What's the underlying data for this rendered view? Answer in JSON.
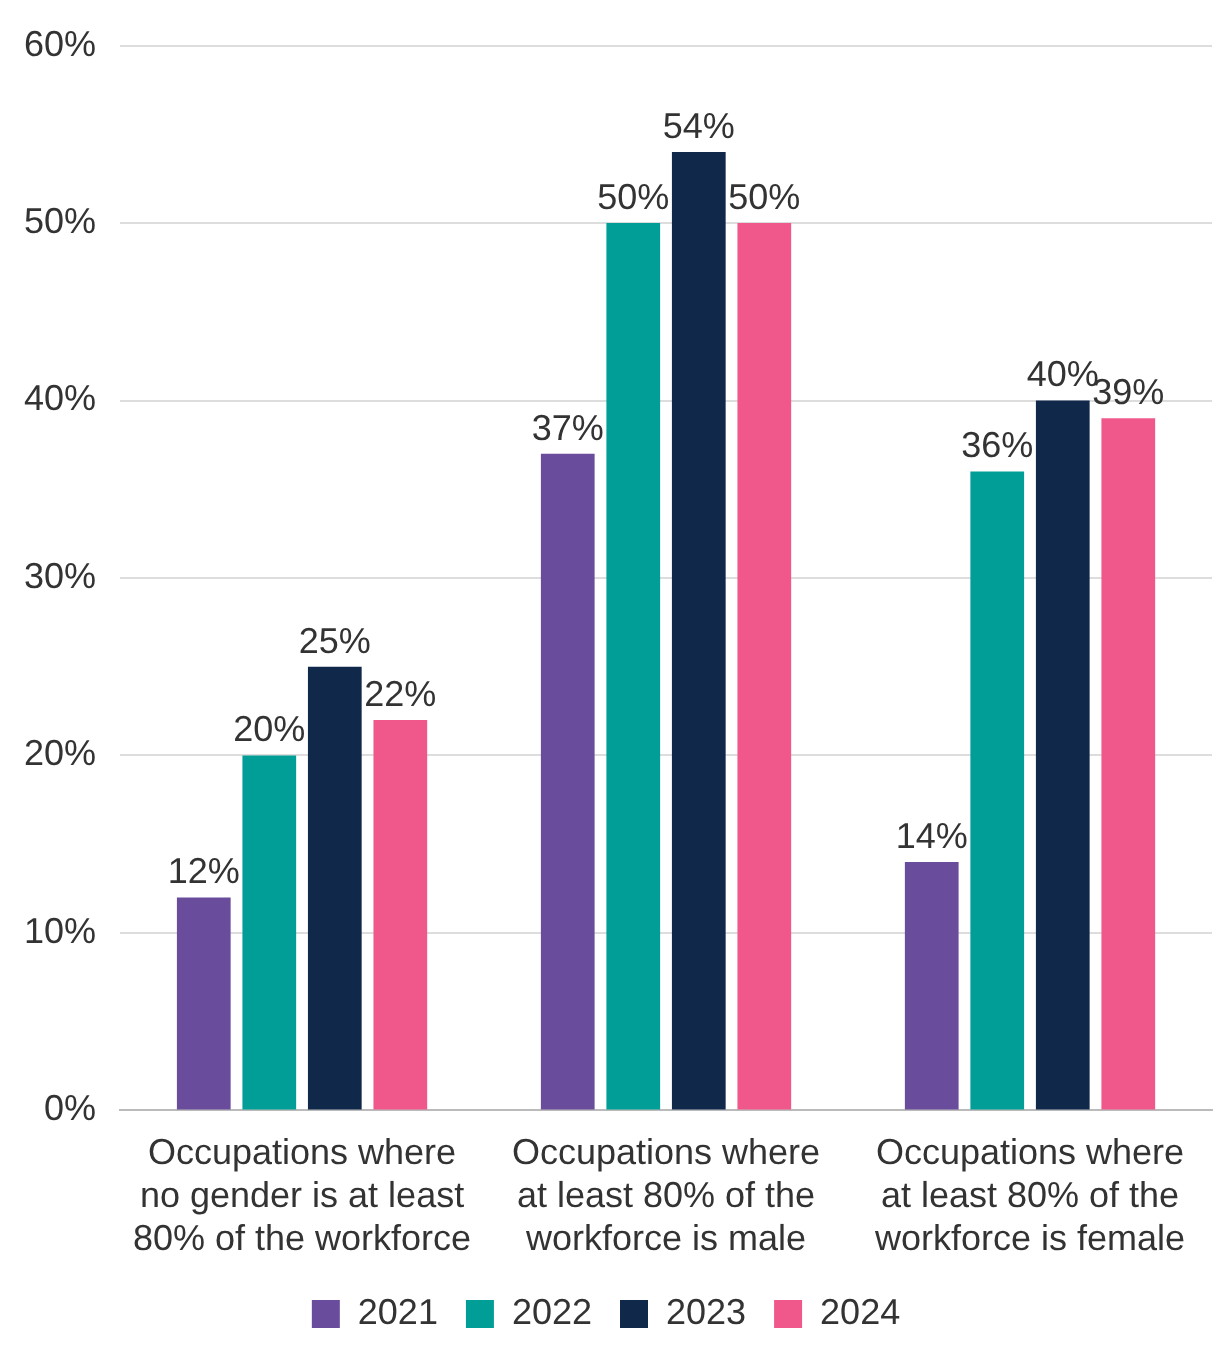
{
  "chart_data": {
    "type": "bar",
    "categories": [
      "Occupations where no gender is at least 80% of the workforce",
      "Occupations where at least 80% of the workforce is male",
      "Occupations where at least 80% of the workforce is female"
    ],
    "series": [
      {
        "name": "2021",
        "color": "#6a4c9c",
        "values": [
          12,
          37,
          14
        ],
        "value_labels": [
          "12%",
          "37%",
          "14%"
        ]
      },
      {
        "name": "2022",
        "color": "#009e96",
        "values": [
          20,
          50,
          36
        ],
        "value_labels": [
          "20%",
          "50%",
          "36%"
        ]
      },
      {
        "name": "2023",
        "color": "#10284a",
        "values": [
          25,
          54,
          40
        ],
        "value_labels": [
          "25%",
          "54%",
          "40%"
        ]
      },
      {
        "name": "2024",
        "color": "#f0588c",
        "values": [
          22,
          50,
          39
        ],
        "value_labels": [
          "22%",
          "50%",
          "39%"
        ]
      }
    ],
    "ylim": [
      0,
      60
    ],
    "yticks": [
      {
        "value": 0,
        "label": "0%"
      },
      {
        "value": 10,
        "label": "10%"
      },
      {
        "value": 20,
        "label": "20%"
      },
      {
        "value": 30,
        "label": "30%"
      },
      {
        "value": 40,
        "label": "40%"
      },
      {
        "value": 50,
        "label": "50%"
      },
      {
        "value": 60,
        "label": "60%"
      }
    ],
    "grid": "y",
    "legend": "bottom"
  }
}
